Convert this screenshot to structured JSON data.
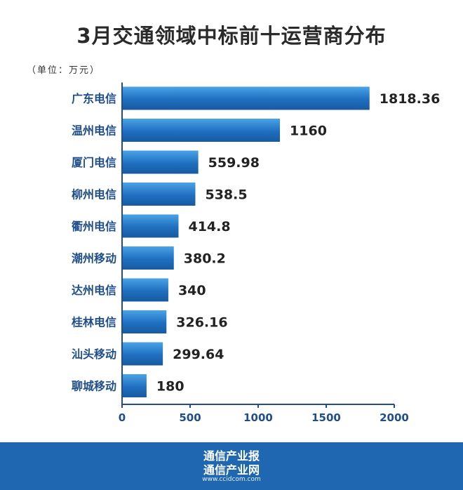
{
  "chart_data": {
    "type": "bar",
    "orientation": "horizontal",
    "title": "3月交通领域中标前十运营商分布",
    "unit_note": "（单位：万元）",
    "categories": [
      "广东电信",
      "温州电信",
      "厦门电信",
      "柳州电信",
      "衢州电信",
      "潮州移动",
      "达州电信",
      "桂林电信",
      "汕头移动",
      "聊城移动"
    ],
    "values": [
      1818.36,
      1160,
      559.98,
      538.5,
      414.8,
      380.2,
      340,
      326.16,
      299.64,
      180
    ],
    "value_labels": [
      "1818.36",
      "1160",
      "559.98",
      "538.5",
      "414.8",
      "380.2",
      "340",
      "326.16",
      "299.64",
      "180"
    ],
    "xlim": [
      0,
      2000
    ],
    "xticks": [
      "0",
      "500",
      "1000",
      "1500",
      "2000"
    ],
    "grid": false,
    "bar_color": "#1f6fc0",
    "axis_color": "#1f4e8a"
  },
  "footer": {
    "brand_line1": "通信产业报",
    "brand_line2": "通信产业网",
    "url": "www.ccidcom.com",
    "background": "#1f67b1"
  }
}
